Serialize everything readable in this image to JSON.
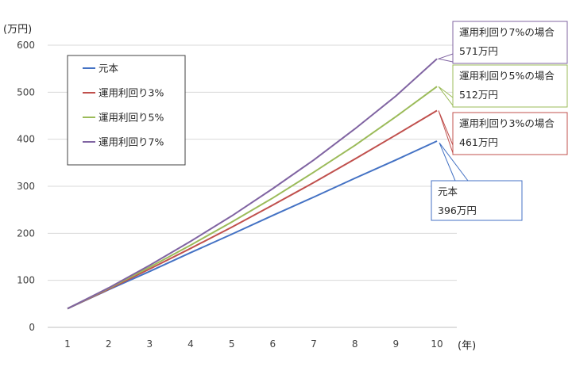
{
  "chart_data": {
    "type": "line",
    "x": [
      1,
      2,
      3,
      4,
      5,
      6,
      7,
      8,
      9,
      10
    ],
    "x_unit_label": "(年)",
    "y_unit_label": "(万円)",
    "ylim": [
      0,
      600
    ],
    "y_ticks": [
      0,
      100,
      200,
      300,
      400,
      500,
      600
    ],
    "grid": "horizontal",
    "legend_position": "top-left",
    "series": [
      {
        "name": "元本",
        "color": "#4472C4",
        "values": [
          40,
          80,
          119,
          159,
          198,
          238,
          277,
          317,
          356,
          396
        ]
      },
      {
        "name": "運用利回り3%",
        "color": "#C0504D",
        "values": [
          40,
          81,
          124,
          168,
          213,
          260,
          308,
          358,
          409,
          461
        ]
      },
      {
        "name": "運用利回り5%",
        "color": "#9BBB59",
        "values": [
          40,
          83,
          128,
          175,
          224,
          275,
          330,
          387,
          448,
          512
        ]
      },
      {
        "name": "運用利回り7%",
        "color": "#8064A2",
        "values": [
          40,
          84,
          132,
          183,
          237,
          295,
          356,
          422,
          492,
          571
        ]
      }
    ],
    "annotations": [
      {
        "series": 3,
        "line1": "運用利回り7%の場合",
        "line2": "571万円"
      },
      {
        "series": 2,
        "line1": "運用利回り5%の場合",
        "line2": "512万円"
      },
      {
        "series": 1,
        "line1": "運用利回り3%の場合",
        "line2": "461万円"
      },
      {
        "series": 0,
        "line1": "元本",
        "line2": "396万円"
      }
    ]
  }
}
